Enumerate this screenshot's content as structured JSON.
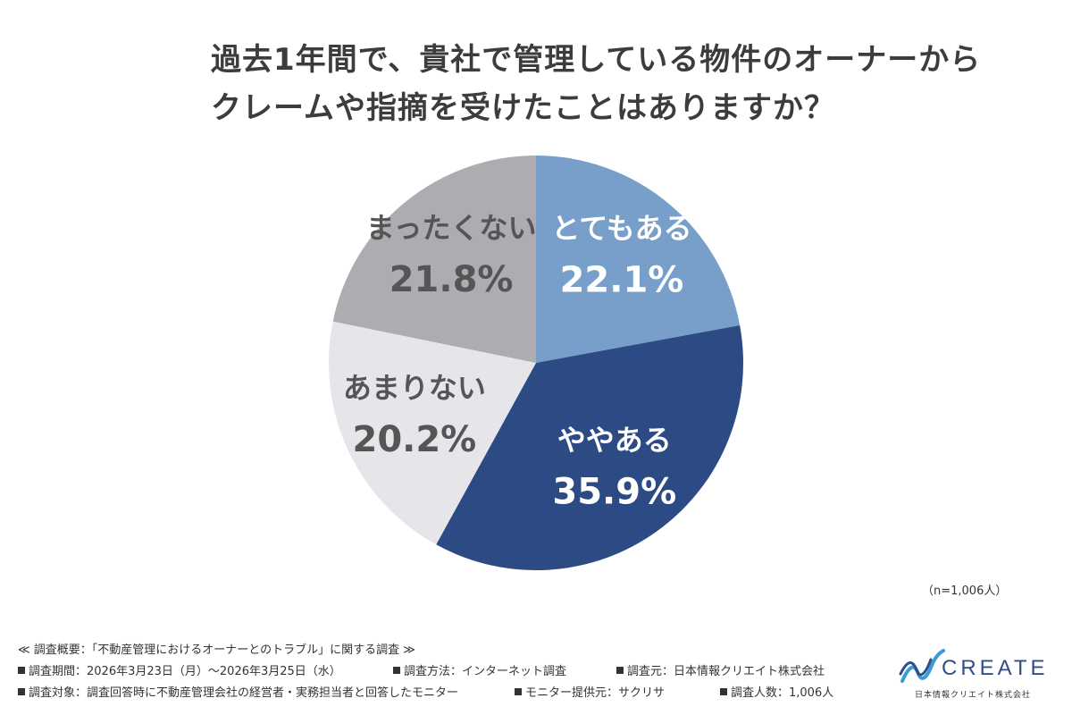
{
  "title_lines": [
    "過去1年間で、貴社で管理している物件のオーナーから",
    "クレームや指摘を受けたことはありますか？"
  ],
  "chart_data": {
    "type": "pie",
    "title": "過去1年間で、貴社で管理している物件のオーナーからクレームや指摘を受けたことはありますか？",
    "categories": [
      "とてもある",
      "ややある",
      "あまりない",
      "まったくない"
    ],
    "values": [
      22.1,
      35.9,
      20.2,
      21.8
    ],
    "value_labels": [
      "22.1%",
      "35.9%",
      "20.2%",
      "21.8%"
    ],
    "colors": [
      "#779fc9",
      "#2c4a84",
      "#e6e6ea",
      "#acacb1"
    ],
    "label_colors": [
      "#ffffff",
      "#ffffff",
      "#555555",
      "#555555"
    ]
  },
  "n_note": "（n=1,006人）",
  "footer": {
    "heading": "≪ 調査概要：「不動産管理におけるオーナーとのトラブル」に関する調査 ≫",
    "period": "調査期間：2026年3月23日（月）〜2026年3月25日（水）",
    "method": "調査方法：インターネット調査",
    "source": "調査元：日本情報クリエイト株式会社",
    "target": "調査対象：調査回答時に不動産管理会社の経営者・実務担当者と回答したモニター",
    "provider": "モニター提供元：サクリサ",
    "count": "調査人数：1,006人"
  },
  "logo": {
    "word": "CREATE",
    "sub": "日本情報クリエイト株式会社",
    "icon": "create-wave-logo-icon",
    "color": "#2f4f86"
  }
}
